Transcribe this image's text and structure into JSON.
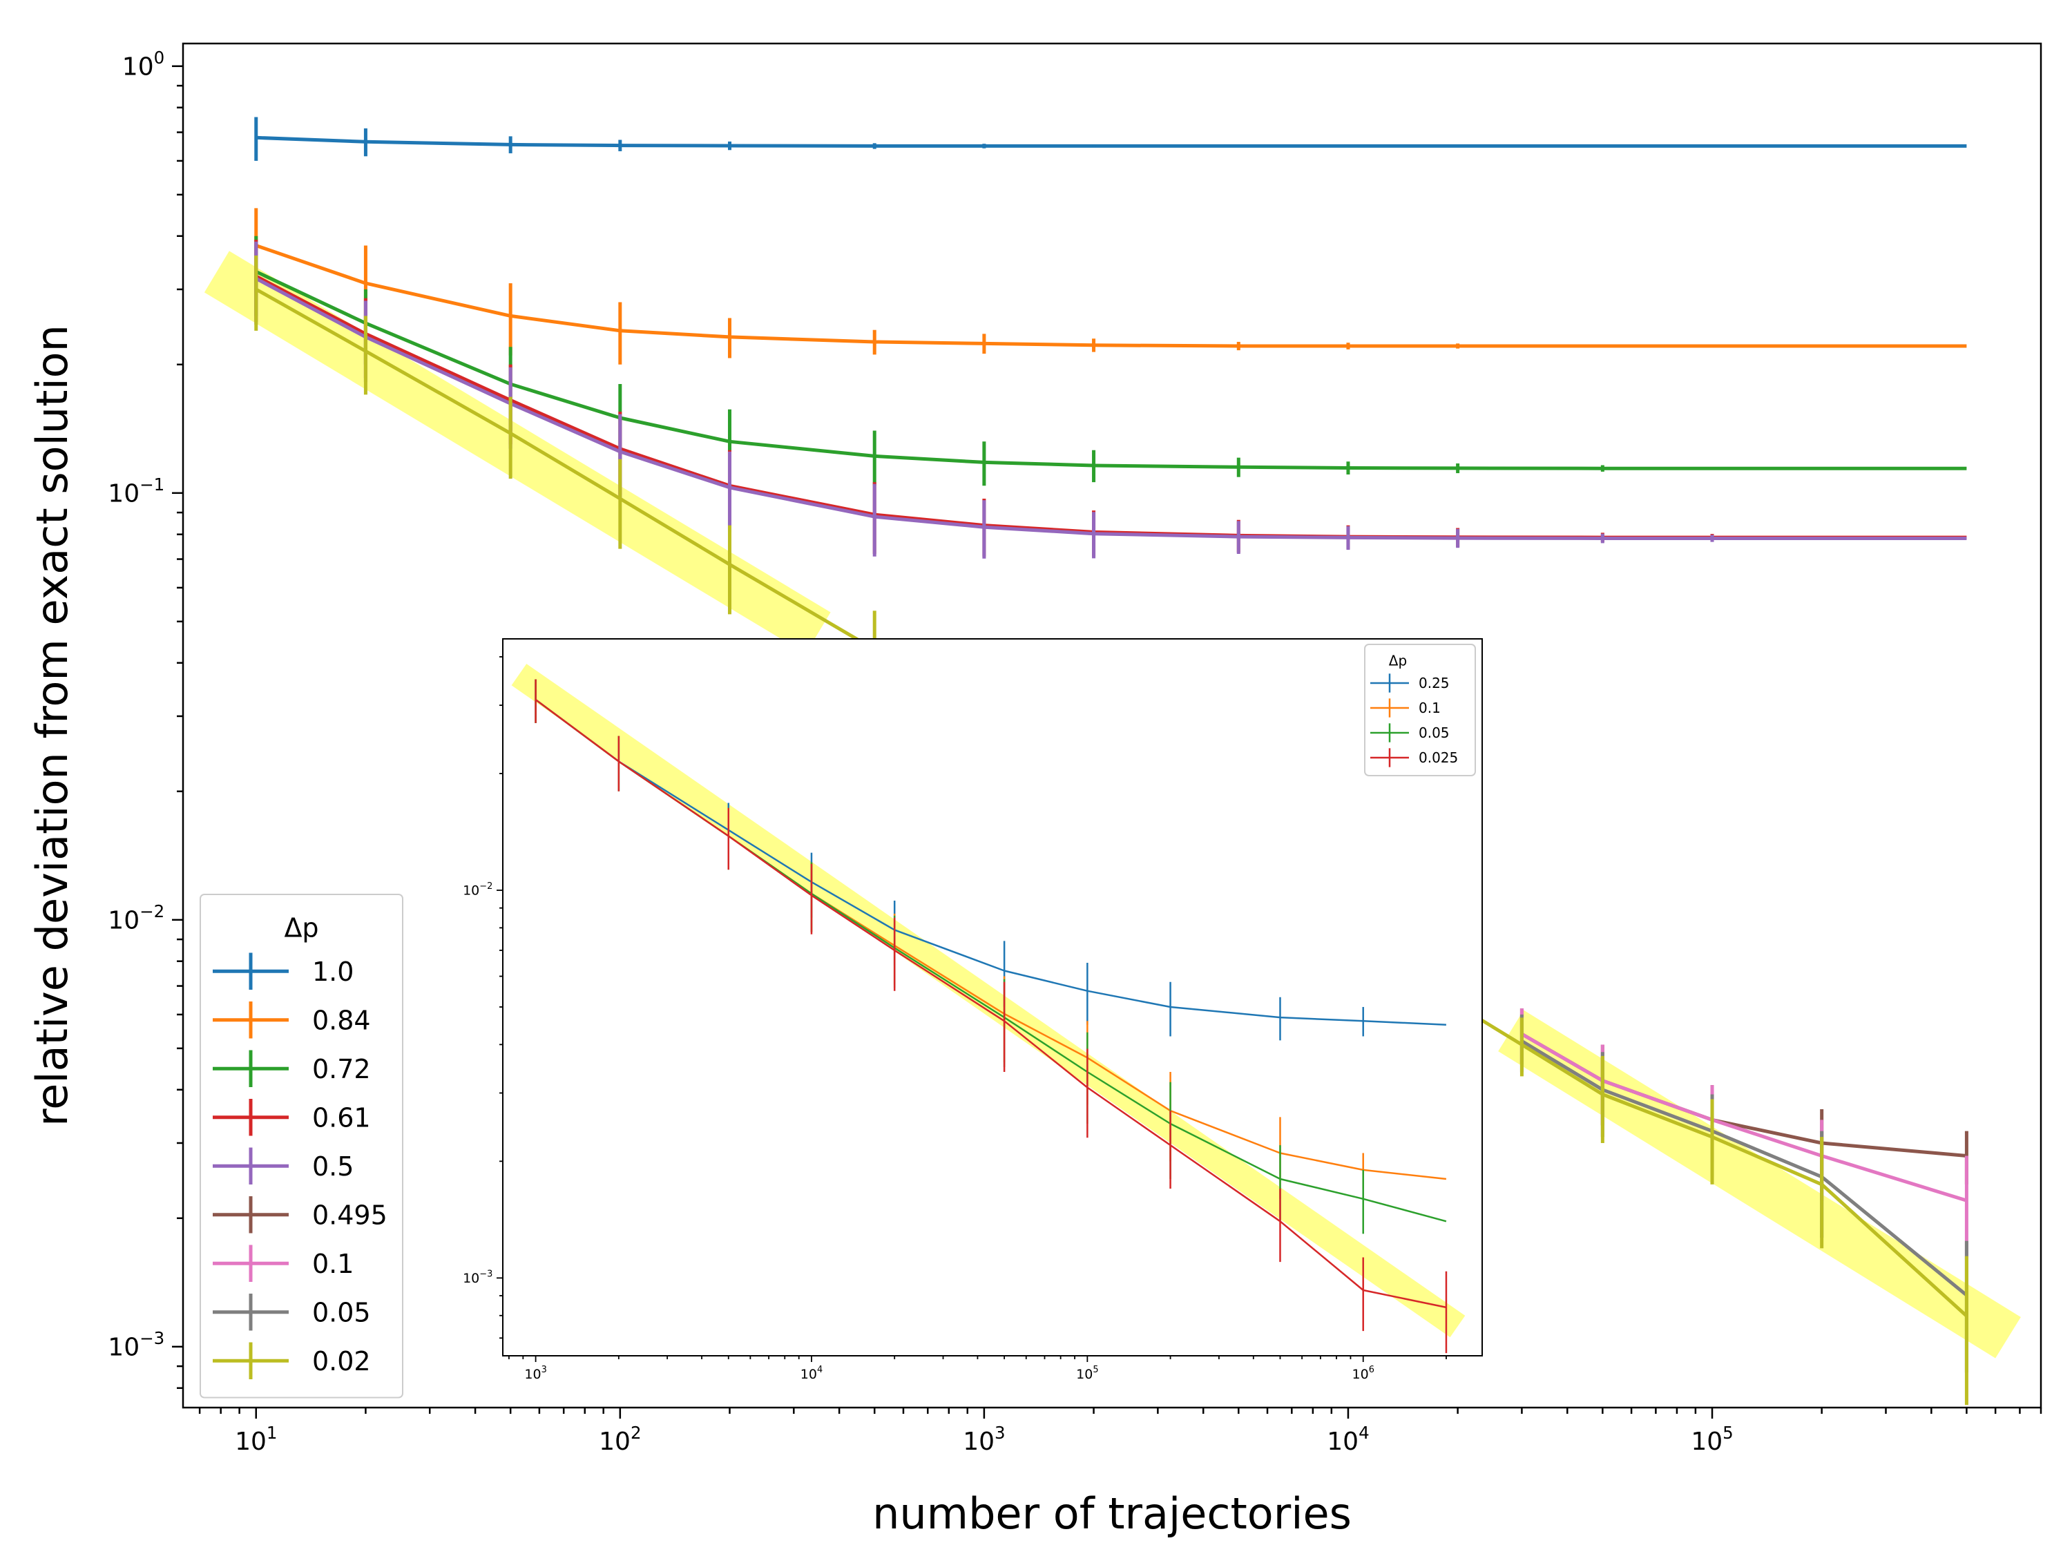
{
  "chart_data": [
    {
      "type": "line",
      "scale": "log-log",
      "xlabel": "number of trajectories",
      "ylabel": "relative deviation from exact solution",
      "xlim": [
        6.3,
        800000
      ],
      "ylim": [
        0.00072,
        1.13
      ],
      "x_ticks": [
        {
          "base": "10",
          "exp": "1"
        },
        {
          "base": "10",
          "exp": "2"
        },
        {
          "base": "10",
          "exp": "3"
        },
        {
          "base": "10",
          "exp": "4"
        },
        {
          "base": "10",
          "exp": "5"
        }
      ],
      "y_ticks": [
        {
          "base": "10",
          "exp": "0"
        },
        {
          "base": "10",
          "exp": "−1"
        },
        {
          "base": "10",
          "exp": "−2"
        },
        {
          "base": "10",
          "exp": "−3"
        }
      ],
      "legend": {
        "title": "Δp",
        "placement": "lower-left"
      },
      "highlight_band": {
        "color": "#ffff66",
        "description": "trend band",
        "segments": [
          {
            "x": [
              7.8,
              350
            ],
            "y": [
              0.33,
              0.047
            ]
          },
          {
            "x": [
              28000,
              650000
            ],
            "y": [
              0.0055,
              0.00105
            ]
          }
        ]
      },
      "series": [
        {
          "name": "1.0",
          "color": "#1f77b4",
          "x": [
            10,
            20,
            50,
            100,
            200,
            500,
            1000,
            2000,
            500000
          ],
          "y": [
            0.68,
            0.665,
            0.655,
            0.652,
            0.651,
            0.65,
            0.65,
            0.65,
            0.65
          ],
          "err": [
            0.08,
            0.05,
            0.03,
            0.02,
            0.015,
            0.01,
            0.008,
            0.005,
            0
          ]
        },
        {
          "name": "0.84",
          "color": "#ff7f0e",
          "x": [
            10,
            20,
            50,
            100,
            200,
            500,
            1000,
            2000,
            5000,
            10000,
            20000,
            500000
          ],
          "y": [
            0.38,
            0.31,
            0.26,
            0.24,
            0.232,
            0.226,
            0.224,
            0.222,
            0.221,
            0.221,
            0.221,
            0.221
          ],
          "err": [
            0.085,
            0.07,
            0.05,
            0.04,
            0.025,
            0.015,
            0.012,
            0.008,
            0.005,
            0.004,
            0.003,
            0
          ]
        },
        {
          "name": "0.72",
          "color": "#2ca02c",
          "x": [
            10,
            20,
            50,
            100,
            200,
            500,
            1000,
            2000,
            5000,
            10000,
            20000,
            50000,
            500000
          ],
          "y": [
            0.33,
            0.25,
            0.18,
            0.15,
            0.132,
            0.122,
            0.118,
            0.116,
            0.115,
            0.1145,
            0.1143,
            0.1142,
            0.1142
          ],
          "err": [
            0.07,
            0.05,
            0.04,
            0.03,
            0.025,
            0.018,
            0.014,
            0.01,
            0.006,
            0.004,
            0.003,
            0.002,
            0
          ]
        },
        {
          "name": "0.61",
          "color": "#d62728",
          "x": [
            10,
            20,
            50,
            100,
            200,
            500,
            1000,
            2000,
            5000,
            10000,
            20000,
            50000,
            100000,
            500000
          ],
          "y": [
            0.322,
            0.236,
            0.165,
            0.127,
            0.104,
            0.089,
            0.084,
            0.081,
            0.0795,
            0.079,
            0.0788,
            0.0787,
            0.0787,
            0.0787
          ],
          "err": [
            0.07,
            0.05,
            0.035,
            0.028,
            0.022,
            0.017,
            0.013,
            0.01,
            0.007,
            0.005,
            0.004,
            0.002,
            0.0015,
            0
          ]
        },
        {
          "name": "0.5",
          "color": "#9467bd",
          "x": [
            10,
            20,
            50,
            100,
            200,
            500,
            1000,
            2000,
            5000,
            10000,
            20000,
            50000,
            100000,
            500000
          ],
          "y": [
            0.318,
            0.232,
            0.162,
            0.125,
            0.103,
            0.088,
            0.0832,
            0.0803,
            0.079,
            0.0786,
            0.0784,
            0.0783,
            0.0783,
            0.0783
          ],
          "err": [
            0.07,
            0.05,
            0.035,
            0.028,
            0.022,
            0.017,
            0.013,
            0.01,
            0.007,
            0.005,
            0.004,
            0.002,
            0.0015,
            0
          ]
        },
        {
          "name": "0.495",
          "color": "#8c564b",
          "x": [
            30000,
            50000,
            100000,
            200000,
            500000
          ],
          "y": [
            0.0054,
            0.0042,
            0.0034,
            0.003,
            0.0028
          ],
          "err": [
            0.0008,
            0.0009,
            0.0007,
            0.0006,
            0.0004
          ]
        },
        {
          "name": "0.1",
          "color": "#e377c2",
          "x": [
            30000,
            50000,
            100000,
            200000,
            500000
          ],
          "y": [
            0.0054,
            0.0042,
            0.0034,
            0.0028,
            0.0022
          ],
          "err": [
            0.0008,
            0.0009,
            0.0007,
            0.0006,
            0.0006
          ]
        },
        {
          "name": "0.05",
          "color": "#7f7f7f",
          "x": [
            30000,
            50000,
            100000,
            200000,
            500000
          ],
          "y": [
            0.0052,
            0.004,
            0.0032,
            0.0025,
            0.00132
          ],
          "err": [
            0.0008,
            0.0009,
            0.0007,
            0.0007,
            0.00045
          ]
        },
        {
          "name": "0.02",
          "color": "#bcbd22",
          "x": [
            10,
            20,
            50,
            100,
            200,
            500,
            30000,
            50000,
            100000,
            200000,
            500000
          ],
          "y": [
            0.3,
            0.215,
            0.138,
            0.097,
            0.068,
            0.043,
            0.0051,
            0.0039,
            0.0031,
            0.0024,
            0.00118
          ],
          "err": [
            0.06,
            0.045,
            0.03,
            0.023,
            0.016,
            0.01,
            0.0008,
            0.0009,
            0.0007,
            0.0007,
            0.00045
          ]
        }
      ]
    },
    {
      "type": "line",
      "scale": "log-log",
      "xlabel": "",
      "ylabel": "",
      "xlim": [
        760,
        2700000
      ],
      "ylim": [
        0.00063,
        0.0445
      ],
      "x_ticks": [
        {
          "base": "10",
          "exp": "3"
        },
        {
          "base": "10",
          "exp": "4"
        },
        {
          "base": "10",
          "exp": "5"
        },
        {
          "base": "10",
          "exp": "6"
        }
      ],
      "y_ticks": [
        {
          "base": "10",
          "exp": "−2"
        },
        {
          "base": "10",
          "exp": "−3"
        }
      ],
      "legend": {
        "title": "Δp",
        "placement": "top-right"
      },
      "highlight_band": {
        "color": "#ffff66",
        "description": "trend band",
        "segments": [
          {
            "x": [
              870,
              2200000
            ],
            "y": [
              0.036,
              0.00075
            ]
          }
        ]
      },
      "series": [
        {
          "name": "0.25",
          "color": "#1f77b4",
          "x": [
            1000,
            2000,
            5000,
            10000,
            20000,
            50000,
            100000,
            200000,
            500000,
            1000000,
            2000000
          ],
          "y": [
            0.031,
            0.0215,
            0.0143,
            0.0105,
            0.0079,
            0.0062,
            0.0055,
            0.005,
            0.0047,
            0.0046,
            0.0045
          ],
          "err": [
            0.004,
            0.0035,
            0.0025,
            0.002,
            0.0015,
            0.0012,
            0.001,
            0.0008,
            0.0006,
            0.0004,
            0
          ]
        },
        {
          "name": "0.1",
          "color": "#ff7f0e",
          "x": [
            1000,
            2000,
            5000,
            10000,
            20000,
            50000,
            100000,
            200000,
            500000,
            1000000,
            2000000
          ],
          "y": [
            0.031,
            0.0215,
            0.0138,
            0.0098,
            0.0072,
            0.0048,
            0.0037,
            0.0027,
            0.0021,
            0.0019,
            0.0018
          ],
          "err": [
            0.004,
            0.0035,
            0.0025,
            0.002,
            0.0015,
            0.0012,
            0.0009,
            0.0007,
            0.0005,
            0.0002,
            0
          ]
        },
        {
          "name": "0.05",
          "color": "#2ca02c",
          "x": [
            1000,
            2000,
            5000,
            10000,
            20000,
            50000,
            100000,
            200000,
            500000,
            1000000,
            2000000
          ],
          "y": [
            0.031,
            0.0215,
            0.0138,
            0.0098,
            0.0071,
            0.0047,
            0.0034,
            0.0025,
            0.0018,
            0.0016,
            0.0014
          ],
          "err": [
            0.004,
            0.0035,
            0.0025,
            0.002,
            0.0015,
            0.0012,
            0.0009,
            0.0007,
            0.0004,
            0.0003,
            0
          ]
        },
        {
          "name": "0.025",
          "color": "#d62728",
          "x": [
            1000,
            2000,
            5000,
            10000,
            20000,
            50000,
            100000,
            200000,
            500000,
            1000000,
            2000000
          ],
          "y": [
            0.031,
            0.0215,
            0.0138,
            0.0097,
            0.007,
            0.0046,
            0.0031,
            0.0022,
            0.0014,
            0.00093,
            0.00084
          ],
          "err": [
            0.004,
            0.0035,
            0.0025,
            0.002,
            0.0015,
            0.0012,
            0.0008,
            0.0005,
            0.0003,
            0.0002,
            0.0002
          ]
        }
      ]
    }
  ]
}
